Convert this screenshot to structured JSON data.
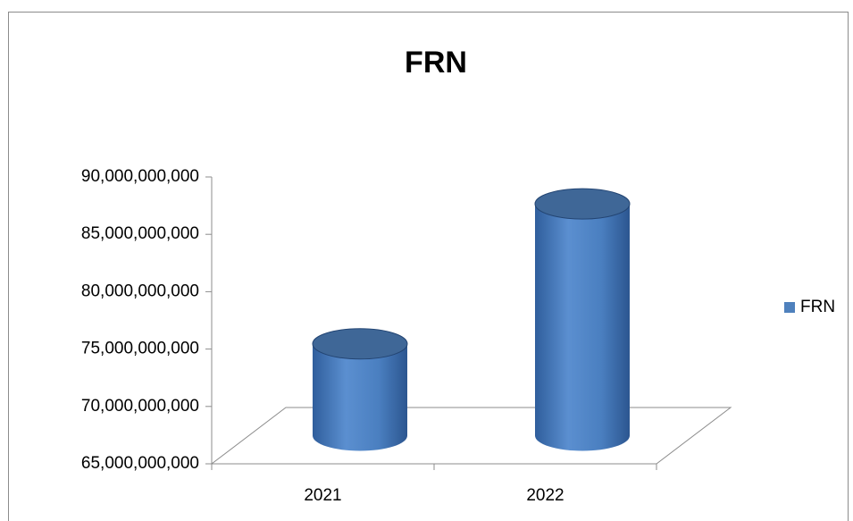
{
  "chart_data": {
    "type": "bar",
    "title": "FRN",
    "categories": [
      "2021",
      "2022"
    ],
    "series": [
      {
        "name": "FRN",
        "color": "#4f81bd",
        "values": [
          73000000000,
          85200000000
        ]
      }
    ],
    "ylim": [
      65000000000,
      90000000000
    ],
    "yticks": [
      {
        "value": 65000000000,
        "label": "65,000,000,000"
      },
      {
        "value": 70000000000,
        "label": "70,000,000,000"
      },
      {
        "value": 75000000000,
        "label": "75,000,000,000"
      },
      {
        "value": 80000000000,
        "label": "80,000,000,000"
      },
      {
        "value": 85000000000,
        "label": "85,000,000,000"
      },
      {
        "value": 90000000000,
        "label": "90,000,000,000"
      }
    ],
    "legend": "right"
  }
}
